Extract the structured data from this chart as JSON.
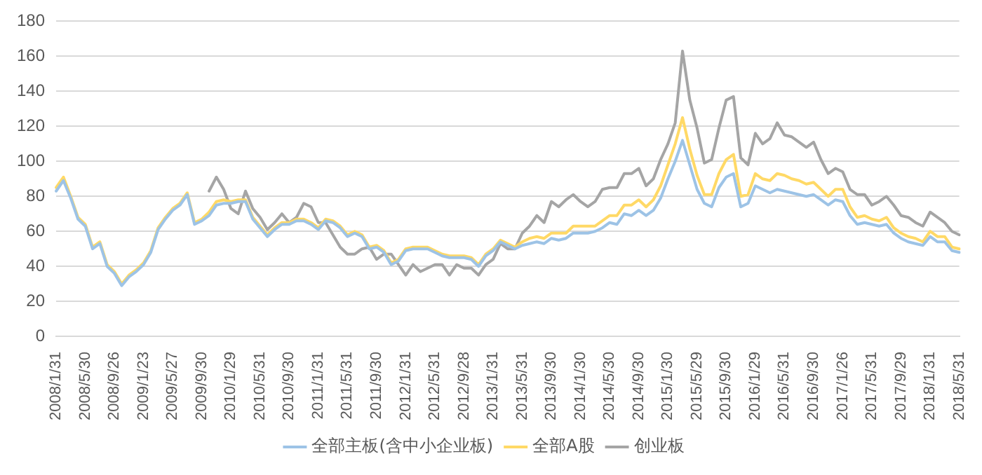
{
  "chart_data": {
    "type": "line",
    "categories": [
      "2008/1/31",
      null,
      null,
      null,
      "2008/5/30",
      null,
      null,
      null,
      "2008/9/26",
      null,
      null,
      null,
      "2009/1/23",
      null,
      null,
      null,
      "2009/5/27",
      null,
      null,
      null,
      "2009/9/30",
      null,
      null,
      null,
      "2010/1/29",
      null,
      null,
      null,
      "2010/5/31",
      null,
      null,
      null,
      "2010/9/30",
      null,
      null,
      null,
      "2011/1/31",
      null,
      null,
      null,
      "2011/5/31",
      null,
      null,
      null,
      "2011/9/30",
      null,
      null,
      null,
      "2012/1/31",
      null,
      null,
      null,
      "2012/5/31",
      null,
      null,
      null,
      "2012/9/28",
      null,
      null,
      null,
      "2013/1/31",
      null,
      null,
      null,
      "2013/5/31",
      null,
      null,
      null,
      "2013/9/30",
      null,
      null,
      null,
      "2014/1/30",
      null,
      null,
      null,
      "2014/5/30",
      null,
      null,
      null,
      "2014/9/30",
      null,
      null,
      null,
      "2015/1/30",
      null,
      null,
      null,
      "2015/5/29",
      null,
      null,
      null,
      "2015/9/30",
      null,
      null,
      null,
      "2016/1/29",
      null,
      null,
      null,
      "2016/5/31",
      null,
      null,
      null,
      "2016/9/30",
      null,
      null,
      null,
      "2017/1/26",
      null,
      null,
      null,
      "2017/5/31",
      null,
      null,
      null,
      "2017/9/29",
      null,
      null,
      null,
      "2018/1/31",
      null,
      null,
      null,
      "2018/5/31"
    ],
    "series": [
      {
        "name": "全部主板(含中小企业板)",
        "color": "#9dc3e6",
        "values": [
          83,
          89,
          79,
          67,
          63,
          50,
          53,
          40,
          36,
          29,
          34,
          37,
          41,
          48,
          61,
          67,
          72,
          75,
          81,
          64,
          66,
          69,
          75,
          76,
          76,
          77,
          77,
          67,
          62,
          57,
          61,
          64,
          64,
          66,
          66,
          64,
          61,
          66,
          65,
          62,
          57,
          59,
          57,
          50,
          51,
          48,
          41,
          43,
          49,
          50,
          50,
          50,
          48,
          46,
          45,
          45,
          45,
          44,
          40,
          46,
          49,
          54,
          52,
          50,
          52,
          53,
          54,
          53,
          56,
          55,
          56,
          59,
          59,
          59,
          60,
          62,
          65,
          64,
          70,
          69,
          72,
          69,
          72,
          79,
          90,
          100,
          112,
          98,
          84,
          76,
          74,
          85,
          91,
          93,
          74,
          76,
          86,
          84,
          82,
          84,
          83,
          82,
          81,
          80,
          81,
          78,
          75,
          78,
          77,
          69,
          64,
          65,
          64,
          63,
          64,
          59,
          56,
          54,
          53,
          52,
          57,
          54,
          54,
          49,
          48
        ]
      },
      {
        "name": "全部A股",
        "color": "#ffd966",
        "values": [
          85,
          91,
          80,
          68,
          64,
          51,
          54,
          41,
          37,
          30,
          35,
          38,
          42,
          49,
          62,
          68,
          73,
          76,
          82,
          65,
          67,
          71,
          77,
          78,
          77,
          78,
          78,
          68,
          63,
          58,
          62,
          65,
          65,
          67,
          67,
          65,
          62,
          67,
          66,
          63,
          58,
          60,
          58,
          51,
          52,
          49,
          42,
          44,
          50,
          51,
          51,
          51,
          49,
          47,
          46,
          46,
          46,
          45,
          41,
          47,
          50,
          55,
          53,
          51,
          54,
          56,
          57,
          56,
          59,
          59,
          59,
          63,
          63,
          63,
          63,
          66,
          69,
          69,
          75,
          75,
          78,
          74,
          78,
          86,
          98,
          110,
          125,
          107,
          92,
          81,
          81,
          93,
          101,
          104,
          80,
          81,
          93,
          90,
          89,
          93,
          92,
          90,
          89,
          87,
          88,
          84,
          80,
          84,
          84,
          74,
          68,
          69,
          67,
          66,
          68,
          62,
          59,
          57,
          56,
          54,
          60,
          57,
          57,
          51,
          50
        ]
      },
      {
        "name": "创业板",
        "color": "#a5a5a5",
        "values": [
          null,
          null,
          null,
          null,
          null,
          null,
          null,
          null,
          null,
          null,
          null,
          null,
          null,
          null,
          null,
          null,
          null,
          null,
          null,
          null,
          null,
          83,
          91,
          84,
          73,
          70,
          83,
          73,
          68,
          61,
          65,
          70,
          65,
          68,
          76,
          74,
          65,
          65,
          58,
          51,
          47,
          47,
          50,
          51,
          44,
          47,
          47,
          41,
          35,
          41,
          37,
          39,
          41,
          41,
          35,
          41,
          39,
          39,
          35,
          41,
          44,
          53,
          50,
          50,
          59,
          63,
          69,
          65,
          77,
          74,
          78,
          81,
          77,
          74,
          77,
          84,
          85,
          85,
          93,
          93,
          96,
          86,
          90,
          101,
          110,
          122,
          163,
          135,
          119,
          99,
          101,
          119,
          135,
          137,
          102,
          98,
          116,
          110,
          113,
          122,
          115,
          114,
          111,
          108,
          111,
          101,
          93,
          96,
          94,
          84,
          81,
          81,
          75,
          77,
          80,
          75,
          69,
          68,
          65,
          63,
          71,
          68,
          65,
          60,
          58
        ]
      }
    ],
    "ylim": [
      0,
      180
    ],
    "yticks": [
      0,
      20,
      40,
      60,
      80,
      100,
      120,
      140,
      160,
      180
    ],
    "grid": "y",
    "legend": "bottom",
    "marker": "none",
    "line_style": "solid"
  }
}
